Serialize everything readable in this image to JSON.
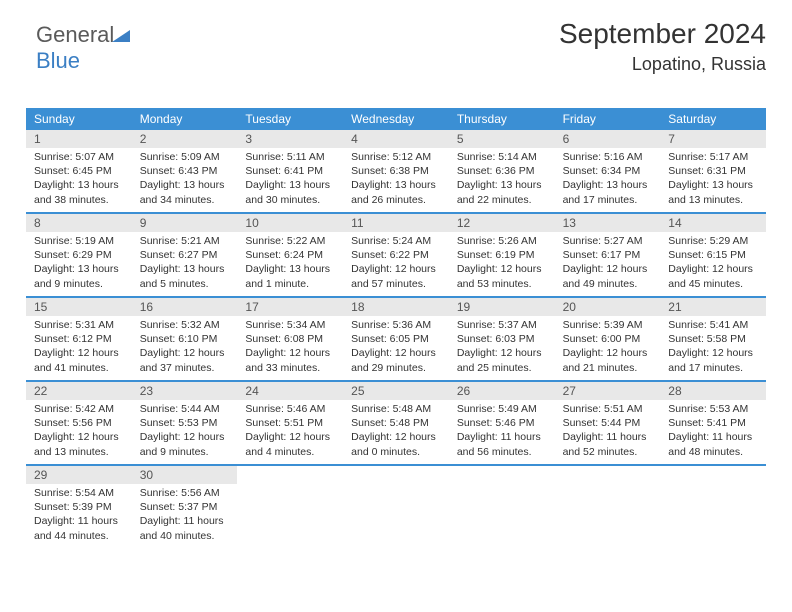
{
  "logo": {
    "text1": "General",
    "text2": "Blue"
  },
  "header": {
    "title": "September 2024",
    "location": "Lopatino, Russia"
  },
  "colors": {
    "header_bg": "#3b8fd4",
    "header_text": "#ffffff",
    "daynum_bg": "#e8e8e8",
    "daynum_text": "#555555",
    "body_text": "#333333",
    "rule": "#3b8fd4",
    "logo_gray": "#5a5a5a",
    "logo_blue": "#3b7fc4"
  },
  "day_labels": [
    "Sunday",
    "Monday",
    "Tuesday",
    "Wednesday",
    "Thursday",
    "Friday",
    "Saturday"
  ],
  "weeks": [
    [
      {
        "n": "1",
        "sr": "Sunrise: 5:07 AM",
        "ss": "Sunset: 6:45 PM",
        "d1": "Daylight: 13 hours",
        "d2": "and 38 minutes."
      },
      {
        "n": "2",
        "sr": "Sunrise: 5:09 AM",
        "ss": "Sunset: 6:43 PM",
        "d1": "Daylight: 13 hours",
        "d2": "and 34 minutes."
      },
      {
        "n": "3",
        "sr": "Sunrise: 5:11 AM",
        "ss": "Sunset: 6:41 PM",
        "d1": "Daylight: 13 hours",
        "d2": "and 30 minutes."
      },
      {
        "n": "4",
        "sr": "Sunrise: 5:12 AM",
        "ss": "Sunset: 6:38 PM",
        "d1": "Daylight: 13 hours",
        "d2": "and 26 minutes."
      },
      {
        "n": "5",
        "sr": "Sunrise: 5:14 AM",
        "ss": "Sunset: 6:36 PM",
        "d1": "Daylight: 13 hours",
        "d2": "and 22 minutes."
      },
      {
        "n": "6",
        "sr": "Sunrise: 5:16 AM",
        "ss": "Sunset: 6:34 PM",
        "d1": "Daylight: 13 hours",
        "d2": "and 17 minutes."
      },
      {
        "n": "7",
        "sr": "Sunrise: 5:17 AM",
        "ss": "Sunset: 6:31 PM",
        "d1": "Daylight: 13 hours",
        "d2": "and 13 minutes."
      }
    ],
    [
      {
        "n": "8",
        "sr": "Sunrise: 5:19 AM",
        "ss": "Sunset: 6:29 PM",
        "d1": "Daylight: 13 hours",
        "d2": "and 9 minutes."
      },
      {
        "n": "9",
        "sr": "Sunrise: 5:21 AM",
        "ss": "Sunset: 6:27 PM",
        "d1": "Daylight: 13 hours",
        "d2": "and 5 minutes."
      },
      {
        "n": "10",
        "sr": "Sunrise: 5:22 AM",
        "ss": "Sunset: 6:24 PM",
        "d1": "Daylight: 13 hours",
        "d2": "and 1 minute."
      },
      {
        "n": "11",
        "sr": "Sunrise: 5:24 AM",
        "ss": "Sunset: 6:22 PM",
        "d1": "Daylight: 12 hours",
        "d2": "and 57 minutes."
      },
      {
        "n": "12",
        "sr": "Sunrise: 5:26 AM",
        "ss": "Sunset: 6:19 PM",
        "d1": "Daylight: 12 hours",
        "d2": "and 53 minutes."
      },
      {
        "n": "13",
        "sr": "Sunrise: 5:27 AM",
        "ss": "Sunset: 6:17 PM",
        "d1": "Daylight: 12 hours",
        "d2": "and 49 minutes."
      },
      {
        "n": "14",
        "sr": "Sunrise: 5:29 AM",
        "ss": "Sunset: 6:15 PM",
        "d1": "Daylight: 12 hours",
        "d2": "and 45 minutes."
      }
    ],
    [
      {
        "n": "15",
        "sr": "Sunrise: 5:31 AM",
        "ss": "Sunset: 6:12 PM",
        "d1": "Daylight: 12 hours",
        "d2": "and 41 minutes."
      },
      {
        "n": "16",
        "sr": "Sunrise: 5:32 AM",
        "ss": "Sunset: 6:10 PM",
        "d1": "Daylight: 12 hours",
        "d2": "and 37 minutes."
      },
      {
        "n": "17",
        "sr": "Sunrise: 5:34 AM",
        "ss": "Sunset: 6:08 PM",
        "d1": "Daylight: 12 hours",
        "d2": "and 33 minutes."
      },
      {
        "n": "18",
        "sr": "Sunrise: 5:36 AM",
        "ss": "Sunset: 6:05 PM",
        "d1": "Daylight: 12 hours",
        "d2": "and 29 minutes."
      },
      {
        "n": "19",
        "sr": "Sunrise: 5:37 AM",
        "ss": "Sunset: 6:03 PM",
        "d1": "Daylight: 12 hours",
        "d2": "and 25 minutes."
      },
      {
        "n": "20",
        "sr": "Sunrise: 5:39 AM",
        "ss": "Sunset: 6:00 PM",
        "d1": "Daylight: 12 hours",
        "d2": "and 21 minutes."
      },
      {
        "n": "21",
        "sr": "Sunrise: 5:41 AM",
        "ss": "Sunset: 5:58 PM",
        "d1": "Daylight: 12 hours",
        "d2": "and 17 minutes."
      }
    ],
    [
      {
        "n": "22",
        "sr": "Sunrise: 5:42 AM",
        "ss": "Sunset: 5:56 PM",
        "d1": "Daylight: 12 hours",
        "d2": "and 13 minutes."
      },
      {
        "n": "23",
        "sr": "Sunrise: 5:44 AM",
        "ss": "Sunset: 5:53 PM",
        "d1": "Daylight: 12 hours",
        "d2": "and 9 minutes."
      },
      {
        "n": "24",
        "sr": "Sunrise: 5:46 AM",
        "ss": "Sunset: 5:51 PM",
        "d1": "Daylight: 12 hours",
        "d2": "and 4 minutes."
      },
      {
        "n": "25",
        "sr": "Sunrise: 5:48 AM",
        "ss": "Sunset: 5:48 PM",
        "d1": "Daylight: 12 hours",
        "d2": "and 0 minutes."
      },
      {
        "n": "26",
        "sr": "Sunrise: 5:49 AM",
        "ss": "Sunset: 5:46 PM",
        "d1": "Daylight: 11 hours",
        "d2": "and 56 minutes."
      },
      {
        "n": "27",
        "sr": "Sunrise: 5:51 AM",
        "ss": "Sunset: 5:44 PM",
        "d1": "Daylight: 11 hours",
        "d2": "and 52 minutes."
      },
      {
        "n": "28",
        "sr": "Sunrise: 5:53 AM",
        "ss": "Sunset: 5:41 PM",
        "d1": "Daylight: 11 hours",
        "d2": "and 48 minutes."
      }
    ],
    [
      {
        "n": "29",
        "sr": "Sunrise: 5:54 AM",
        "ss": "Sunset: 5:39 PM",
        "d1": "Daylight: 11 hours",
        "d2": "and 44 minutes."
      },
      {
        "n": "30",
        "sr": "Sunrise: 5:56 AM",
        "ss": "Sunset: 5:37 PM",
        "d1": "Daylight: 11 hours",
        "d2": "and 40 minutes."
      },
      null,
      null,
      null,
      null,
      null
    ]
  ]
}
